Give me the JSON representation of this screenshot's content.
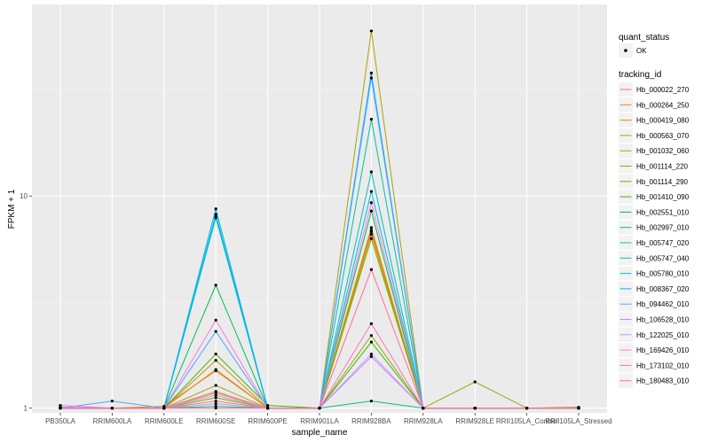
{
  "chart_data": {
    "type": "line",
    "title": "",
    "xlabel": "sample_name",
    "ylabel": "FPKM + 1",
    "y_scale": "log",
    "y_ticks": [
      1,
      10
    ],
    "y_tick_labels": [
      "1",
      "10"
    ],
    "ylim": [
      0.95,
      80
    ],
    "grid": true,
    "background": "#ebebeb",
    "legend_position": "right",
    "categories": [
      "PB350LA",
      "RRIM600LA",
      "RRIM600LE",
      "RRIM600SE",
      "RRIM600PE",
      "RRIM901LA",
      "RRIM928BA",
      "RRIM928LA",
      "RRIM928LE",
      "RRII105LA_Control",
      "RRII105LA_Stressed"
    ],
    "shape_legend": {
      "title": "quant_status",
      "entries": [
        {
          "label": "OK"
        }
      ]
    },
    "color_legend_title": "tracking_id",
    "series": [
      {
        "name": "Hb_000022_270",
        "color": "#F8766D",
        "values": [
          1.0,
          1.0,
          1.0,
          1.08,
          1.0,
          1.0,
          6.8,
          1.0,
          1.0,
          1.0,
          1.0
        ]
      },
      {
        "name": "Hb_000264_250",
        "color": "#EC8239",
        "values": [
          1.0,
          1.0,
          1.0,
          1.52,
          1.0,
          1.0,
          6.9,
          1.0,
          1.0,
          1.0,
          1.0
        ]
      },
      {
        "name": "Hb_000419_080",
        "color": "#DB8E00",
        "values": [
          1.01,
          1.0,
          1.02,
          1.5,
          1.0,
          1.0,
          6.6,
          1.0,
          1.0,
          1.0,
          1.0
        ]
      },
      {
        "name": "Hb_000563_070",
        "color": "#C79800",
        "values": [
          1.0,
          1.0,
          1.0,
          1.68,
          1.0,
          1.0,
          7.1,
          1.0,
          1.0,
          1.0,
          1.0
        ]
      },
      {
        "name": "Hb_001032_060",
        "color": "#AFA100",
        "values": [
          1.0,
          1.0,
          1.0,
          1.18,
          1.0,
          1.0,
          60.0,
          1.0,
          1.0,
          1.0,
          1.01
        ]
      },
      {
        "name": "Hb_001114_220",
        "color": "#94A900",
        "values": [
          1.0,
          1.0,
          1.0,
          1.28,
          1.0,
          1.0,
          2.2,
          1.0,
          1.33,
          1.0,
          1.0
        ]
      },
      {
        "name": "Hb_001114_290",
        "color": "#72B000",
        "values": [
          1.0,
          1.0,
          1.0,
          1.12,
          1.0,
          1.0,
          6.3,
          1.0,
          1.0,
          1.0,
          1.0
        ]
      },
      {
        "name": "Hb_001410_090",
        "color": "#3DB700",
        "values": [
          1.0,
          1.0,
          1.0,
          1.8,
          1.03,
          1.0,
          2.05,
          1.0,
          1.0,
          1.0,
          1.0
        ]
      },
      {
        "name": "Hb_002551_010",
        "color": "#00BC52",
        "values": [
          1.0,
          1.0,
          1.0,
          3.8,
          1.0,
          1.0,
          8.5,
          1.0,
          1.0,
          1.0,
          1.0
        ]
      },
      {
        "name": "Hb_002997_010",
        "color": "#00BF7D",
        "values": [
          1.0,
          1.0,
          1.0,
          1.02,
          1.0,
          1.0,
          1.08,
          1.0,
          1.0,
          1.0,
          1.0
        ]
      },
      {
        "name": "Hb_005747_020",
        "color": "#00C1A1",
        "values": [
          1.0,
          1.0,
          1.0,
          8.0,
          1.0,
          1.0,
          23.0,
          1.0,
          1.0,
          1.0,
          1.0
        ]
      },
      {
        "name": "Hb_005747_040",
        "color": "#00BFC1",
        "values": [
          1.0,
          1.0,
          1.0,
          7.9,
          1.0,
          1.0,
          13.0,
          1.0,
          1.0,
          1.0,
          1.0
        ]
      },
      {
        "name": "Hb_005780_010",
        "color": "#00BADE",
        "values": [
          1.0,
          1.0,
          1.0,
          8.2,
          1.0,
          1.0,
          10.5,
          1.0,
          1.0,
          1.0,
          1.0
        ]
      },
      {
        "name": "Hb_008367_020",
        "color": "#00B1F5",
        "values": [
          1.0,
          1.0,
          1.0,
          8.7,
          1.0,
          1.0,
          38.0,
          1.0,
          1.0,
          1.0,
          1.0
        ]
      },
      {
        "name": "Hb_094462_010",
        "color": "#4EA6FF",
        "values": [
          1.0,
          1.08,
          1.0,
          2.3,
          1.0,
          1.0,
          36.0,
          1.0,
          1.0,
          1.0,
          1.0
        ]
      },
      {
        "name": "Hb_106528_010",
        "color": "#AD97FF",
        "values": [
          1.01,
          1.0,
          1.0,
          1.05,
          1.0,
          1.0,
          1.75,
          1.0,
          1.0,
          1.0,
          1.0
        ]
      },
      {
        "name": "Hb_122025_010",
        "color": "#DE87FF",
        "values": [
          1.0,
          1.0,
          1.0,
          1.15,
          1.0,
          1.0,
          1.8,
          1.0,
          1.0,
          1.0,
          1.0
        ]
      },
      {
        "name": "Hb_169426_010",
        "color": "#F77AE8",
        "values": [
          1.03,
          1.0,
          1.0,
          2.6,
          1.0,
          1.0,
          9.3,
          1.0,
          1.0,
          1.0,
          1.0
        ]
      },
      {
        "name": "Hb_173102_010",
        "color": "#FF71BF",
        "values": [
          1.0,
          1.0,
          1.0,
          1.2,
          1.0,
          1.0,
          2.5,
          1.0,
          1.0,
          1.0,
          1.0
        ]
      },
      {
        "name": "Hb_180483_010",
        "color": "#FF6C91",
        "values": [
          1.0,
          1.0,
          1.0,
          1.0,
          1.0,
          1.0,
          4.5,
          1.0,
          1.0,
          1.0,
          1.0
        ]
      }
    ]
  }
}
